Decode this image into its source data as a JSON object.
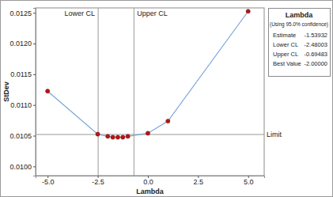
{
  "chart_data": {
    "type": "line",
    "marker": "circle",
    "color": "#7aa6d9",
    "x_label": "Lambda",
    "y_label": "StDev",
    "x": [
      -5.0,
      -2.5,
      -2.0,
      -1.75,
      -1.5,
      -1.25,
      -1.0,
      0.0,
      1.0,
      5.0
    ],
    "values": [
      0.011225,
      0.010525,
      0.01049,
      0.010475,
      0.010475,
      0.010475,
      0.01049,
      0.01054,
      0.010738,
      0.012525
    ],
    "xlim": [
      -5.6,
      5.8
    ],
    "ylim": [
      0.00985,
      0.01258
    ],
    "xticks": [
      {
        "value": -5,
        "label": "-5.0"
      },
      {
        "value": -2.5,
        "label": "-2.5"
      },
      {
        "value": 0,
        "label": "0.0"
      },
      {
        "value": 2.5,
        "label": "2.5"
      },
      {
        "value": 5,
        "label": "5.0"
      }
    ],
    "yticks": [
      {
        "value": 0.01,
        "label": "0.0100"
      },
      {
        "value": 0.0105,
        "label": "0.0105"
      },
      {
        "value": 0.011,
        "label": "0.0110"
      },
      {
        "value": 0.0115,
        "label": "0.0115"
      },
      {
        "value": 0.012,
        "label": "0.0120"
      },
      {
        "value": 0.0125,
        "label": "0.0125"
      }
    ],
    "vlines": [
      {
        "value": -2.48003,
        "label": "Lower CL"
      },
      {
        "value": -0.69483,
        "label": "Upper CL"
      }
    ],
    "hlines": [
      {
        "value": 0.01052,
        "label": "Limit"
      }
    ],
    "info_box": {
      "title": "Lambda",
      "subtitle": "(Using 95.0% confidence)",
      "rows": [
        {
          "label": "Estimate",
          "value": "-1.53932"
        },
        {
          "label": "Lower CL",
          "value": "-2.48003"
        },
        {
          "label": "Upper CL",
          "value": "-0.69483"
        },
        {
          "label": "Best Value",
          "value": "-2.00000"
        }
      ]
    }
  }
}
